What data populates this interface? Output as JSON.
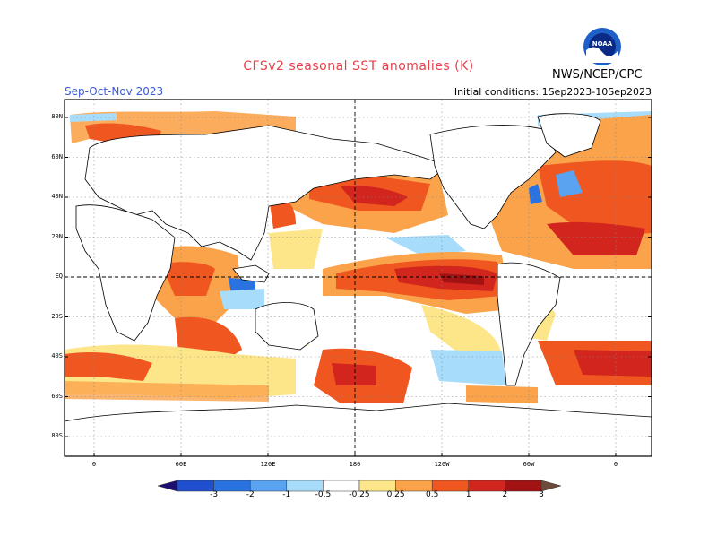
{
  "title": "CFSv2 seasonal SST anomalies (K)",
  "season": "Sep-Oct-Nov 2023",
  "initial_conditions": "Initial conditions: 1Sep2023-10Sep2023",
  "agency": "NWS/NCEP/CPC",
  "logo_text": "NOAA",
  "icons": {
    "logo": "noaa-logo-icon"
  },
  "map": {
    "lat_labels": [
      "80N",
      "60N",
      "40N",
      "20N",
      "EQ",
      "20S",
      "40S",
      "60S",
      "80S"
    ],
    "lon_labels": [
      "0",
      "60E",
      "120E",
      "180",
      "120W",
      "60W",
      "0"
    ],
    "colorbar_labels": [
      "-3",
      "-2",
      "-1",
      "-0.5",
      "-0.25",
      "0.25",
      "0.5",
      "1",
      "2",
      "3"
    ],
    "colorbar_colors": [
      "#1c0f6e",
      "#1f4fcf",
      "#2a72e0",
      "#5aa3f0",
      "#a8dcfb",
      "#ffffff",
      "#fde68a",
      "#fba34a",
      "#f0561f",
      "#d1251e",
      "#a11212",
      "#6e4a3a"
    ],
    "land_color": "#ffffff",
    "ocean_neutral": "#ffffff"
  }
}
